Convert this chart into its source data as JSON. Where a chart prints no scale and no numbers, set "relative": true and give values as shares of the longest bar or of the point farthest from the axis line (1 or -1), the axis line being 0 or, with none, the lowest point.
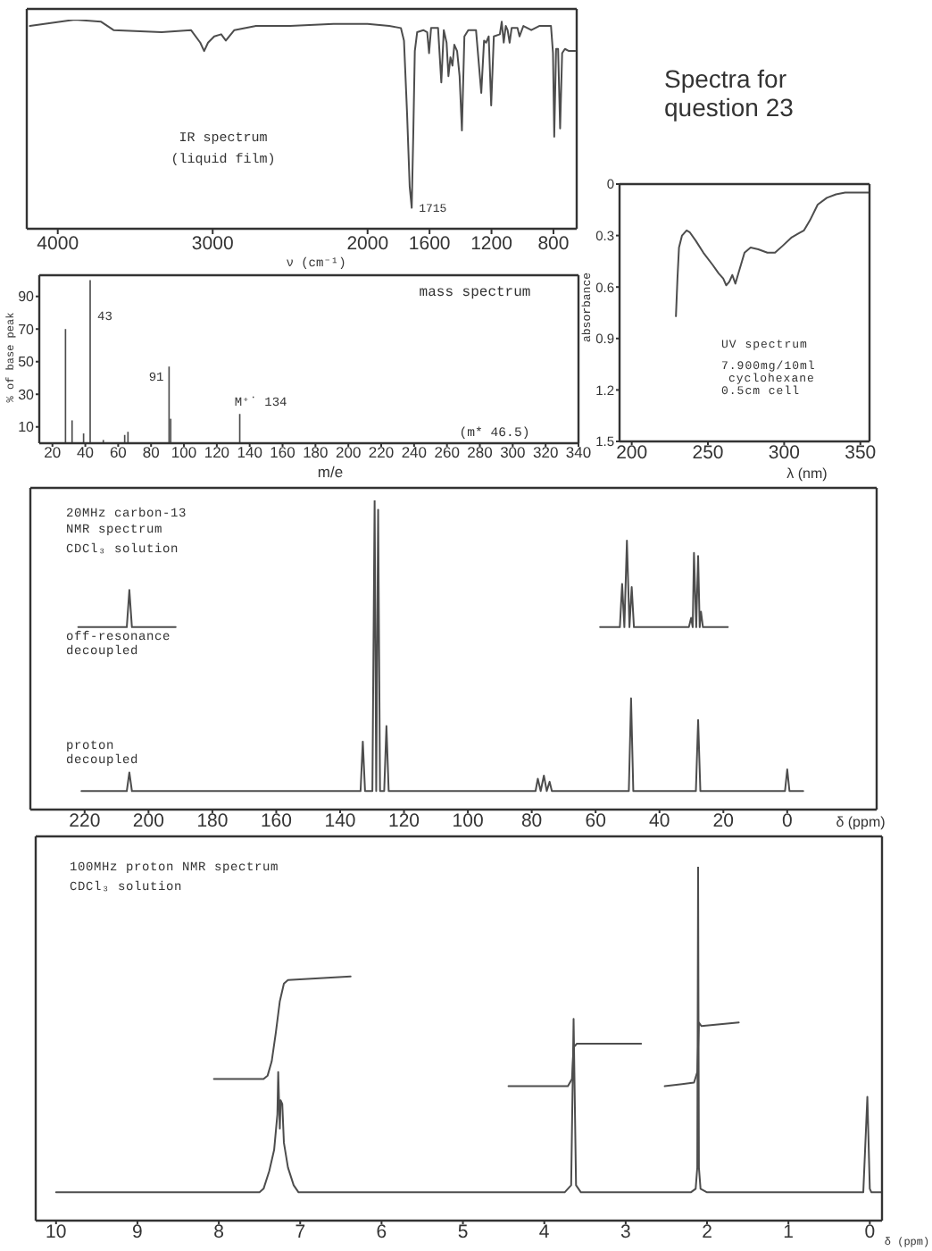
{
  "chart_data": [
    {
      "type": "line",
      "relative": true,
      "xlabel": "ν (cm⁻¹)",
      "annotations": [
        "IR spectrum",
        "(liquid film)",
        {
          "text": "1715",
          "x": 1715,
          "y": 0.1
        }
      ],
      "color": "#4d4d4d",
      "xlim": [
        4200,
        650
      ],
      "xticks": [
        4000,
        3000,
        2000,
        1600,
        1200,
        800
      ],
      "x": [
        4180,
        3890,
        3720,
        3640,
        3330,
        3140,
        3080,
        3055,
        3030,
        2990,
        2945,
        2915,
        2860,
        2720,
        2500,
        2220,
        2000,
        1860,
        1785,
        1765,
        1745,
        1728,
        1715,
        1705,
        1695,
        1680,
        1640,
        1615,
        1603,
        1590,
        1545,
        1524,
        1508,
        1490,
        1478,
        1465,
        1452,
        1440,
        1422,
        1406,
        1391,
        1375,
        1350,
        1300,
        1266,
        1248,
        1235,
        1218,
        1202,
        1185,
        1146,
        1134,
        1121,
        1108,
        1096,
        1083,
        1070,
        1032,
        1019,
        994,
        943,
        892,
        816,
        803,
        795,
        783,
        770,
        757,
        744,
        726,
        700,
        675,
        660
      ],
      "values": [
        0.97,
        1,
        0.99,
        0.95,
        0.94,
        0.95,
        0.89,
        0.85,
        0.89,
        0.92,
        0.93,
        0.9,
        0.95,
        0.97,
        0.97,
        0.98,
        0.98,
        0.97,
        0.96,
        0.9,
        0.55,
        0.2,
        0.1,
        0.45,
        0.85,
        0.94,
        0.95,
        0.94,
        0.84,
        0.96,
        0.96,
        0.7,
        0.95,
        0.89,
        0.73,
        0.82,
        0.78,
        0.88,
        0.85,
        0.73,
        0.47,
        0.92,
        0.95,
        0.95,
        0.65,
        0.9,
        0.89,
        0.92,
        0.59,
        0.92,
        0.93,
        0.99,
        0.89,
        0.97,
        0.95,
        0.89,
        0.96,
        0.96,
        0.92,
        0.97,
        0.95,
        0.97,
        0.97,
        0.84,
        0.44,
        0.86,
        0.86,
        0.48,
        0.84,
        0.86,
        0.85,
        0.85,
        0.85
      ]
    },
    {
      "type": "line",
      "title": "Spectra for question 23",
      "xlabel": "λ (nm)",
      "ylabel": "absorbance",
      "annotations": [
        "UV spectrum",
        "7.900mg/10ml",
        "cyclohexane",
        "0.5cm cell"
      ],
      "color": "#4d4d4d",
      "xlim": [
        192,
        356
      ],
      "xticks": [
        200,
        250,
        300,
        350
      ],
      "ylim": [
        1.5,
        0
      ],
      "yticks": [
        0,
        0.3,
        0.6,
        0.9,
        1.2,
        1.5
      ],
      "x": [
        229,
        230,
        231,
        233,
        236,
        238,
        242,
        247,
        253,
        257,
        260,
        262,
        264,
        266,
        268,
        270,
        274,
        278,
        283,
        289,
        294,
        299,
        305,
        309,
        313,
        317,
        322,
        328,
        334,
        340,
        356
      ],
      "values": [
        0.77,
        0.55,
        0.37,
        0.3,
        0.27,
        0.28,
        0.33,
        0.4,
        0.47,
        0.52,
        0.55,
        0.59,
        0.57,
        0.53,
        0.58,
        0.52,
        0.4,
        0.37,
        0.38,
        0.4,
        0.4,
        0.36,
        0.31,
        0.29,
        0.27,
        0.21,
        0.12,
        0.08,
        0.06,
        0.05,
        0.05
      ]
    },
    {
      "type": "bar",
      "xlabel": "m/e",
      "ylabel": "% of base peak",
      "annotations": [
        "mass spectrum",
        {
          "text": "43",
          "x": 43,
          "y": 100
        },
        {
          "text": "91",
          "x": 91,
          "y": 47
        },
        {
          "text": "M⁺˙ 134",
          "x": 134,
          "y": 18
        },
        "(m* 46.5)"
      ],
      "color": "#4d4d4d",
      "xlim": [
        12,
        340
      ],
      "xticks": [
        20,
        40,
        60,
        80,
        100,
        120,
        140,
        160,
        180,
        200,
        220,
        240,
        260,
        280,
        300,
        320,
        340
      ],
      "ylim": [
        0,
        103
      ],
      "yticks": [
        10,
        30,
        50,
        70,
        90
      ],
      "x": [
        28,
        32,
        39,
        43,
        51,
        64,
        66,
        91,
        92,
        134
      ],
      "values": [
        70,
        14,
        6,
        100,
        2,
        5,
        7,
        47,
        15,
        18
      ]
    },
    {
      "type": "line",
      "relative": true,
      "xlabel": "δ (ppm)",
      "annotations": [
        "20MHz carbon-13",
        "NMR spectrum",
        "CDCl₃ solution"
      ],
      "xlim": [
        237,
        -28
      ],
      "xticks": [
        220,
        200,
        180,
        160,
        140,
        120,
        100,
        80,
        60,
        40,
        20,
        0
      ],
      "series": [
        {
          "name": "off-resonance decoupled",
          "color": "#4d4d4d",
          "x": [
            222,
            206.8,
            206,
            205.2,
            191.5,
            120,
            58.6,
            52.4,
            51.7,
            51,
            50.2,
            49.4,
            48.7,
            48,
            30.8,
            30.1,
            29.6,
            29.2,
            28.5,
            27.9,
            27.4,
            27,
            26.4,
            18.6
          ],
          "values": [
            0.59,
            0.59,
            0.71,
            0.59,
            0.59,
            null,
            0.59,
            0.59,
            0.73,
            0.59,
            0.87,
            0.59,
            0.72,
            0.59,
            0.59,
            0.62,
            0.59,
            0.83,
            0.59,
            0.82,
            0.59,
            0.64,
            0.59,
            0.59
          ]
        },
        {
          "name": "proton decoupled",
          "color": "#4d4d4d",
          "x": [
            221,
            206.8,
            206,
            205.2,
            133.6,
            132.9,
            132.2,
            129.9,
            129.2,
            128.7,
            128.1,
            127.5,
            126.2,
            125.5,
            124.8,
            78.8,
            78.1,
            77.2,
            76.2,
            75.3,
            74.4,
            73.7,
            49.6,
            48.9,
            48.2,
            28.6,
            27.9,
            27.2,
            0.7,
            0,
            -0.7,
            -5
          ],
          "values": [
            0.06,
            0.06,
            0.12,
            0.06,
            0.06,
            0.22,
            0.06,
            0.06,
            1,
            0.06,
            0.97,
            0.06,
            0.06,
            0.27,
            0.06,
            0.06,
            0.1,
            0.06,
            0.11,
            0.06,
            0.09,
            0.06,
            0.06,
            0.36,
            0.06,
            0.06,
            0.29,
            0.06,
            0.06,
            0.13,
            0.06,
            0.06
          ]
        }
      ]
    },
    {
      "type": "line",
      "relative": true,
      "xlabel": "δ (ppm)",
      "annotations": [
        "100MHz proton NMR spectrum",
        "CDCl₃ solution"
      ],
      "xlim": [
        10.25,
        -0.15
      ],
      "xticks": [
        10,
        9,
        8,
        7,
        6,
        5,
        4,
        3,
        2,
        1,
        0
      ],
      "series": [
        {
          "color": "#4d4d4d",
          "x": [
            10,
            7.5,
            7.45,
            7.38,
            7.32,
            7.28,
            7.27,
            7.25,
            7.24,
            7.22,
            7.2,
            7.15,
            7.08,
            7.02,
            3.75,
            3.67,
            3.64,
            3.61,
            3.55,
            2.2,
            2.14,
            2.12,
            2.11,
            2.1,
            2.08,
            2,
            0.08,
            0.03,
            0,
            -0.02,
            -0.15
          ],
          "values": [
            0.08,
            0.08,
            0.09,
            0.14,
            0.2,
            0.3,
            0.42,
            0.26,
            0.34,
            0.33,
            0.22,
            0.15,
            0.1,
            0.08,
            0.08,
            0.1,
            0.57,
            0.1,
            0.08,
            0.08,
            0.09,
            0.15,
            1,
            0.15,
            0.09,
            0.08,
            0.08,
            0.35,
            0.09,
            0.08,
            0.08
          ]
        },
        {
          "color": "#4d4d4d",
          "x": [
            8.06,
            7.45,
            7.4,
            7.35,
            7.3,
            7.25,
            7.2,
            7.15,
            6.38,
            5.4,
            4.44,
            3.71,
            3.66,
            3.64,
            3.6,
            2.81,
            2.66,
            2.52,
            2.16,
            2.12,
            2.1,
            2.07,
            1.61
          ],
          "values": [
            0.4,
            0.4,
            0.41,
            0.45,
            0.53,
            0.62,
            0.67,
            0.68,
            0.69,
            null,
            0.38,
            0.38,
            0.4,
            0.49,
            0.5,
            0.5,
            null,
            0.38,
            0.39,
            0.42,
            0.56,
            0.55,
            0.56
          ]
        }
      ]
    }
  ]
}
